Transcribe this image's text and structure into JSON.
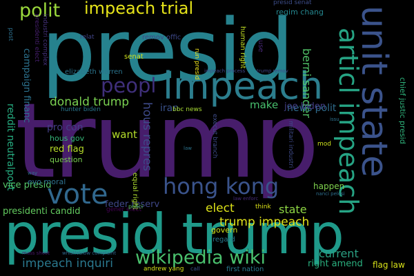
{
  "words": [
    {
      "text": "trump",
      "color": "#471d6b"
    },
    {
      "text": "presid",
      "color": "#26828e"
    },
    {
      "text": "presid trump",
      "color": "#1f9a8a"
    },
    {
      "text": "impeach",
      "color": "#2c7e8e"
    },
    {
      "text": "unit state",
      "color": "#3b538b"
    },
    {
      "text": "articl impeach",
      "color": "#26a484"
    },
    {
      "text": "vote",
      "color": "#31688e"
    },
    {
      "text": "hong kong",
      "color": "#3a538b"
    },
    {
      "text": "impeach trial",
      "color": "#e6e419"
    },
    {
      "text": "polit",
      "color": "#9bd93c"
    },
    {
      "text": "peopl",
      "color": "#3f2f7a"
    },
    {
      "text": "wikipedia wiki",
      "color": "#4ac16d"
    },
    {
      "text": "donald trump",
      "color": "#7ad151"
    },
    {
      "text": "trump impeach",
      "color": "#e1e31b"
    },
    {
      "text": "berni sander",
      "color": "#52c569"
    },
    {
      "text": "news polit",
      "color": "#2f6c8e"
    },
    {
      "text": "impeach inquiri",
      "color": "#2a788e"
    },
    {
      "text": "hous repres",
      "color": "#3e4a89"
    },
    {
      "text": "make",
      "color": "#48c16e"
    },
    {
      "text": "joe biden",
      "color": "#433e85"
    },
    {
      "text": "want",
      "color": "#b5de2b"
    },
    {
      "text": "elect",
      "color": "#dde318"
    },
    {
      "text": "state",
      "color": "#8fd744"
    },
    {
      "text": "current",
      "color": "#2ba083"
    },
    {
      "text": "iran",
      "color": "#3b528b"
    },
    {
      "text": "reddit neutralpolit",
      "color": "#26ad81"
    },
    {
      "text": "campaign financ",
      "color": "#2c728e"
    },
    {
      "text": "pro con",
      "color": "#433e85"
    },
    {
      "text": "feder reserv",
      "color": "#3f4788"
    },
    {
      "text": "presidenti candid",
      "color": "#63cb5f"
    },
    {
      "text": "elizabeth warren",
      "color": "#2b758e"
    },
    {
      "text": "red flag",
      "color": "#b8de29"
    },
    {
      "text": "hous gov",
      "color": "#35b779"
    },
    {
      "text": "question",
      "color": "#7ad151"
    },
    {
      "text": "vice presid",
      "color": "#56c667"
    },
    {
      "text": "evo moral",
      "color": "#2d708e"
    },
    {
      "text": "right amend",
      "color": "#2ab07f"
    },
    {
      "text": "flag law",
      "color": "#d8e219"
    },
    {
      "text": "happen",
      "color": "#7fd34e"
    },
    {
      "text": "chief justic presid",
      "color": "#2fb47c"
    },
    {
      "text": "regim chang",
      "color": "#24868e"
    },
    {
      "text": "remov offic",
      "color": "#3e4989"
    },
    {
      "text": "relat",
      "color": "#414487"
    },
    {
      "text": "senat",
      "color": "#d0e11c"
    },
    {
      "text": "human right",
      "color": "#c2df23"
    },
    {
      "text": "run presid",
      "color": "#f1e51d"
    },
    {
      "text": "use",
      "color": "#482878"
    },
    {
      "text": "presidenti elect",
      "color": "#481f70"
    },
    {
      "text": "industri complex",
      "color": "#46327e"
    },
    {
      "text": "post",
      "color": "#2d708e"
    },
    {
      "text": "presid senat",
      "color": "#3d4e8a"
    },
    {
      "text": "impeach process",
      "color": "#3f4788"
    },
    {
      "text": "trump remov",
      "color": "#3f4788"
    },
    {
      "text": "bbc news",
      "color": "#a8db34"
    },
    {
      "text": "hunter biden",
      "color": "#2a768e"
    },
    {
      "text": "equal right",
      "color": "#addc30"
    },
    {
      "text": "execut branch",
      "color": "#3e4c8a"
    },
    {
      "text": "militari industri",
      "color": "#3e4a89"
    },
    {
      "text": "gener elect",
      "color": "#440154"
    },
    {
      "text": "law enforc",
      "color": "#472a7a"
    },
    {
      "text": "nanci pelosi",
      "color": "#2e6f8e"
    },
    {
      "text": "mod",
      "color": "#cde11d"
    },
    {
      "text": "issu",
      "color": "#2c728e"
    },
    {
      "text": "law",
      "color": "#2c738e"
    },
    {
      "text": "way",
      "color": "#2e6e8e"
    },
    {
      "text": "polici",
      "color": "#5ec962"
    },
    {
      "text": "govern",
      "color": "#d2e21b"
    },
    {
      "text": "regard",
      "color": "#29798e"
    },
    {
      "text": "think",
      "color": "#dde318"
    },
    {
      "text": "first nation",
      "color": "#2a788e"
    },
    {
      "text": "andrew yang",
      "color": "#d5e21a"
    },
    {
      "text": "call",
      "color": "#3b528b"
    },
    {
      "text": "mass shoot",
      "color": "#48186a"
    },
    {
      "text": "whistleblow complaint",
      "color": "#31678e"
    }
  ]
}
